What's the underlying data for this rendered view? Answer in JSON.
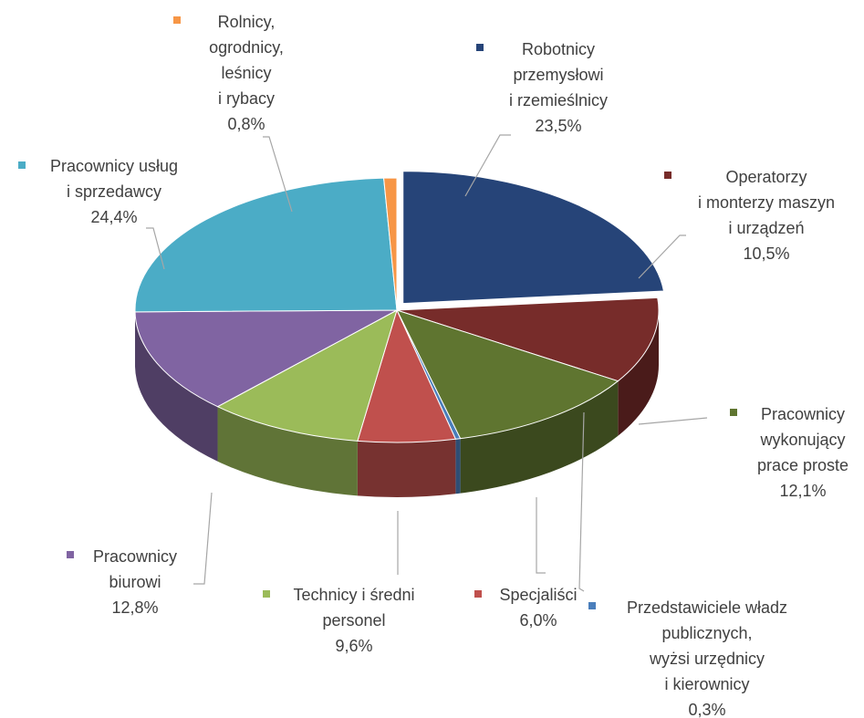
{
  "chart_data": {
    "type": "pie3d",
    "categories": [
      "Robotnicy\nprzemysłowi\ni rzemieślnicy",
      "Operatorzy\ni monterzy maszyn\ni urządzeń",
      "Pracownicy\nwykonujący\nprace proste",
      "Przedstawiciele władz\npubliczny­ch,\nwyżsi urzędnicy\ni kierownicy",
      "Specjaliści",
      "Technicy i średni\npersonel",
      "Pracownicy\nbiurowi",
      "Pracownicy usług\ni sprzedawcy",
      "Rolnicy,\nogrodnicy,\nleśnicy\ni rybacy"
    ],
    "values": [
      23.5,
      10.5,
      12.1,
      0.3,
      6.0,
      9.6,
      12.8,
      24.4,
      0.8
    ],
    "value_labels": [
      "23,5%",
      "10,5%",
      "12,1%",
      "0,3%",
      "6,0%",
      "9,6%",
      "12,8%",
      "24,4%",
      "0,8%"
    ],
    "colors": [
      "#264478",
      "#772c2a",
      "#5f7530",
      "#4a7ebb",
      "#c0504d",
      "#9bbb59",
      "#8064a2",
      "#4bacc6",
      "#f79646"
    ]
  }
}
